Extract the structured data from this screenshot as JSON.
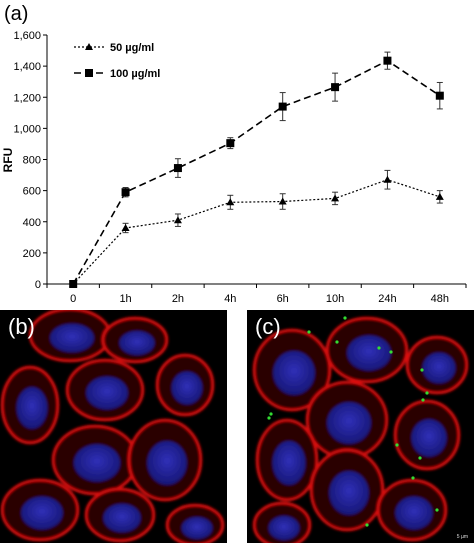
{
  "panel_a_label": "(a)",
  "panel_b_label": "(b)",
  "panel_c_label": "(c)",
  "scale_label_c": "5 µm",
  "colors": {
    "cell_membrane": "#e01010",
    "nucleus": "#1a1a9a",
    "particles": "#33dd33",
    "background": "#000000"
  },
  "chart_data": {
    "type": "line",
    "categories": [
      "0",
      "1h",
      "2h",
      "4h",
      "6h",
      "10h",
      "24h",
      "48h"
    ],
    "ylabel": "RFU",
    "xlabel": "",
    "ylim": [
      0,
      1600
    ],
    "yticks": [
      0,
      200,
      400,
      600,
      800,
      "1,000",
      "1,200",
      "1,400",
      "1,600"
    ],
    "legend_position": "top-left",
    "grid": false,
    "series": [
      {
        "name": "50 µg/ml",
        "marker": "triangle",
        "line_style": "dotted",
        "values": [
          0,
          360,
          410,
          525,
          530,
          550,
          670,
          560
        ],
        "errors": [
          0,
          30,
          40,
          45,
          50,
          40,
          60,
          40
        ]
      },
      {
        "name": "100 µg/ml",
        "marker": "square",
        "line_style": "dashed",
        "values": [
          0,
          590,
          745,
          905,
          1140,
          1265,
          1435,
          1210
        ],
        "errors": [
          0,
          30,
          60,
          35,
          90,
          90,
          55,
          85
        ]
      }
    ]
  }
}
